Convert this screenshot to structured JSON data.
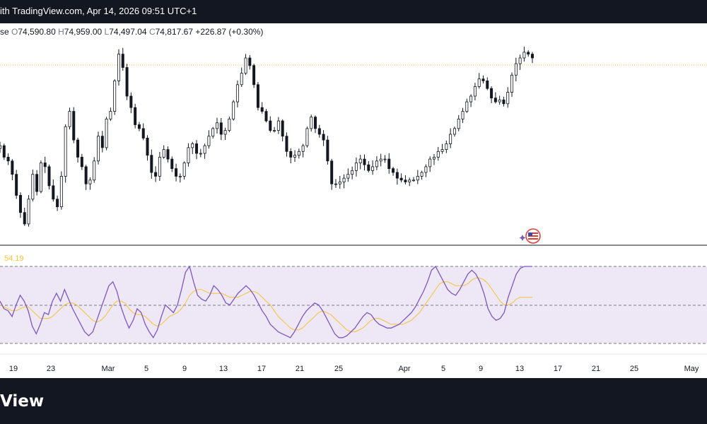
{
  "header": {
    "title_text": "ith TradingView.com, Apr 14, 2026 09:51 UTC+1"
  },
  "ohlc": {
    "close_label_fragment": "se",
    "open_key": "O",
    "open": "74,590.80",
    "high_key": "H",
    "high": "74,959.00",
    "low_key": "L",
    "low": "74,497.04",
    "close_key": "C",
    "close": "74,817.67",
    "change": "+226.87 (+0.30%)"
  },
  "footer": {
    "brand": "View"
  },
  "colors": {
    "candle": "#131722",
    "rsi_line": "#7e57c2",
    "rsi_ma": "#f7c234",
    "rsi_band": "#ede7f6",
    "rsi_value_label": "#f7c234",
    "dark_bar": "#131722"
  },
  "icons": {
    "event_marker": "us-flag-event-icon"
  },
  "chart_data": [
    {
      "type": "candlestick",
      "series_name": "",
      "x_tick_labels": [
        "19",
        "23",
        "Mar",
        "5",
        "9",
        "13",
        "17",
        "21",
        "25",
        "Apr",
        "5",
        "9",
        "13",
        "17",
        "21",
        "25",
        "May"
      ],
      "close_values": [
        74400,
        73800,
        73600,
        72900,
        71800,
        70900,
        70300,
        71600,
        72900,
        72000,
        73500,
        73300,
        72300,
        71600,
        71200,
        72800,
        75400,
        76200,
        74700,
        73800,
        73300,
        72400,
        72600,
        73600,
        74900,
        74300,
        75800,
        76200,
        77800,
        79200,
        78500,
        77000,
        76400,
        75500,
        75300,
        74800,
        73900,
        73000,
        72800,
        73800,
        74200,
        73700,
        73200,
        72800,
        72800,
        73500,
        74300,
        74500,
        74000,
        74000,
        74400,
        74900,
        75300,
        75600,
        75000,
        75200,
        75800,
        76700,
        77600,
        78200,
        79000,
        78600,
        77600,
        76400,
        76200,
        75700,
        75200,
        75200,
        75700,
        74900,
        74100,
        73800,
        73900,
        74100,
        74400,
        75300,
        75900,
        75300,
        75000,
        74700,
        73600,
        72400,
        72400,
        72500,
        72700,
        72900,
        73100,
        73500,
        73700,
        73400,
        73100,
        73300,
        73600,
        73700,
        73700,
        73200,
        73000,
        72700,
        72600,
        72500,
        72600,
        72600,
        72800,
        73000,
        73300,
        73700,
        73800,
        74100,
        74200,
        74500,
        75000,
        75300,
        75800,
        76200,
        76700,
        77000,
        77500,
        77900,
        77800,
        77400,
        76900,
        76700,
        76800,
        76600,
        77200,
        78100,
        78700,
        79000,
        79300,
        79200,
        79000
      ]
    },
    {
      "type": "line",
      "title": "",
      "value_label": "54.19",
      "upper_band": 70,
      "middle_band": 50,
      "lower_band": 30,
      "ylim": [
        25,
        75
      ],
      "series": [
        {
          "values": [
            52,
            48,
            47,
            44,
            50,
            55,
            52,
            47,
            39,
            35,
            40,
            46,
            45,
            52,
            56,
            52,
            58,
            53,
            48,
            44,
            40,
            36,
            34,
            36,
            42,
            48,
            54,
            60,
            62,
            57,
            49,
            43,
            38,
            42,
            48,
            46,
            40,
            36,
            33,
            37,
            44,
            50,
            48,
            46,
            50,
            58,
            67,
            70,
            62,
            55,
            53,
            52,
            55,
            60,
            58,
            55,
            51,
            50,
            53,
            56,
            58,
            60,
            58,
            55,
            51,
            47,
            44,
            40,
            38,
            36,
            35,
            34,
            33,
            36,
            40,
            44,
            47,
            49,
            51,
            50,
            47,
            43,
            39,
            35,
            33,
            33,
            34,
            36,
            38,
            41,
            44,
            46,
            45,
            42,
            40,
            39,
            38,
            38,
            39,
            40,
            42,
            44,
            46,
            49,
            53,
            57,
            62,
            68,
            70,
            66,
            62,
            58,
            56,
            55,
            58,
            62,
            66,
            68,
            66,
            62,
            56,
            48,
            44,
            42,
            43,
            46,
            54,
            60,
            66,
            69,
            70,
            70,
            70
          ]
        },
        {
          "values": [
            50,
            49,
            48,
            47,
            47,
            48,
            49,
            49,
            47,
            45,
            43,
            43,
            43,
            44,
            46,
            48,
            50,
            51,
            51,
            50,
            48,
            46,
            44,
            42,
            41,
            42,
            44,
            47,
            50,
            52,
            52,
            51,
            48,
            46,
            45,
            45,
            44,
            42,
            40,
            39,
            40,
            42,
            44,
            45,
            46,
            48,
            51,
            55,
            57,
            58,
            58,
            57,
            56,
            56,
            56,
            56,
            55,
            54,
            54,
            54,
            55,
            56,
            57,
            57,
            56,
            54,
            52,
            50,
            47,
            44,
            42,
            40,
            38,
            37,
            37,
            38,
            40,
            42,
            44,
            46,
            47,
            46,
            45,
            43,
            41,
            39,
            37,
            36,
            36,
            37,
            38,
            40,
            42,
            43,
            43,
            42,
            41,
            40,
            40,
            40,
            40,
            41,
            42,
            44,
            46,
            49,
            52,
            55,
            58,
            61,
            62,
            62,
            61,
            60,
            60,
            60,
            61,
            63,
            64,
            64,
            63,
            61,
            58,
            55,
            52,
            50,
            50,
            51,
            53,
            54,
            54,
            54,
            54
          ]
        }
      ]
    }
  ]
}
